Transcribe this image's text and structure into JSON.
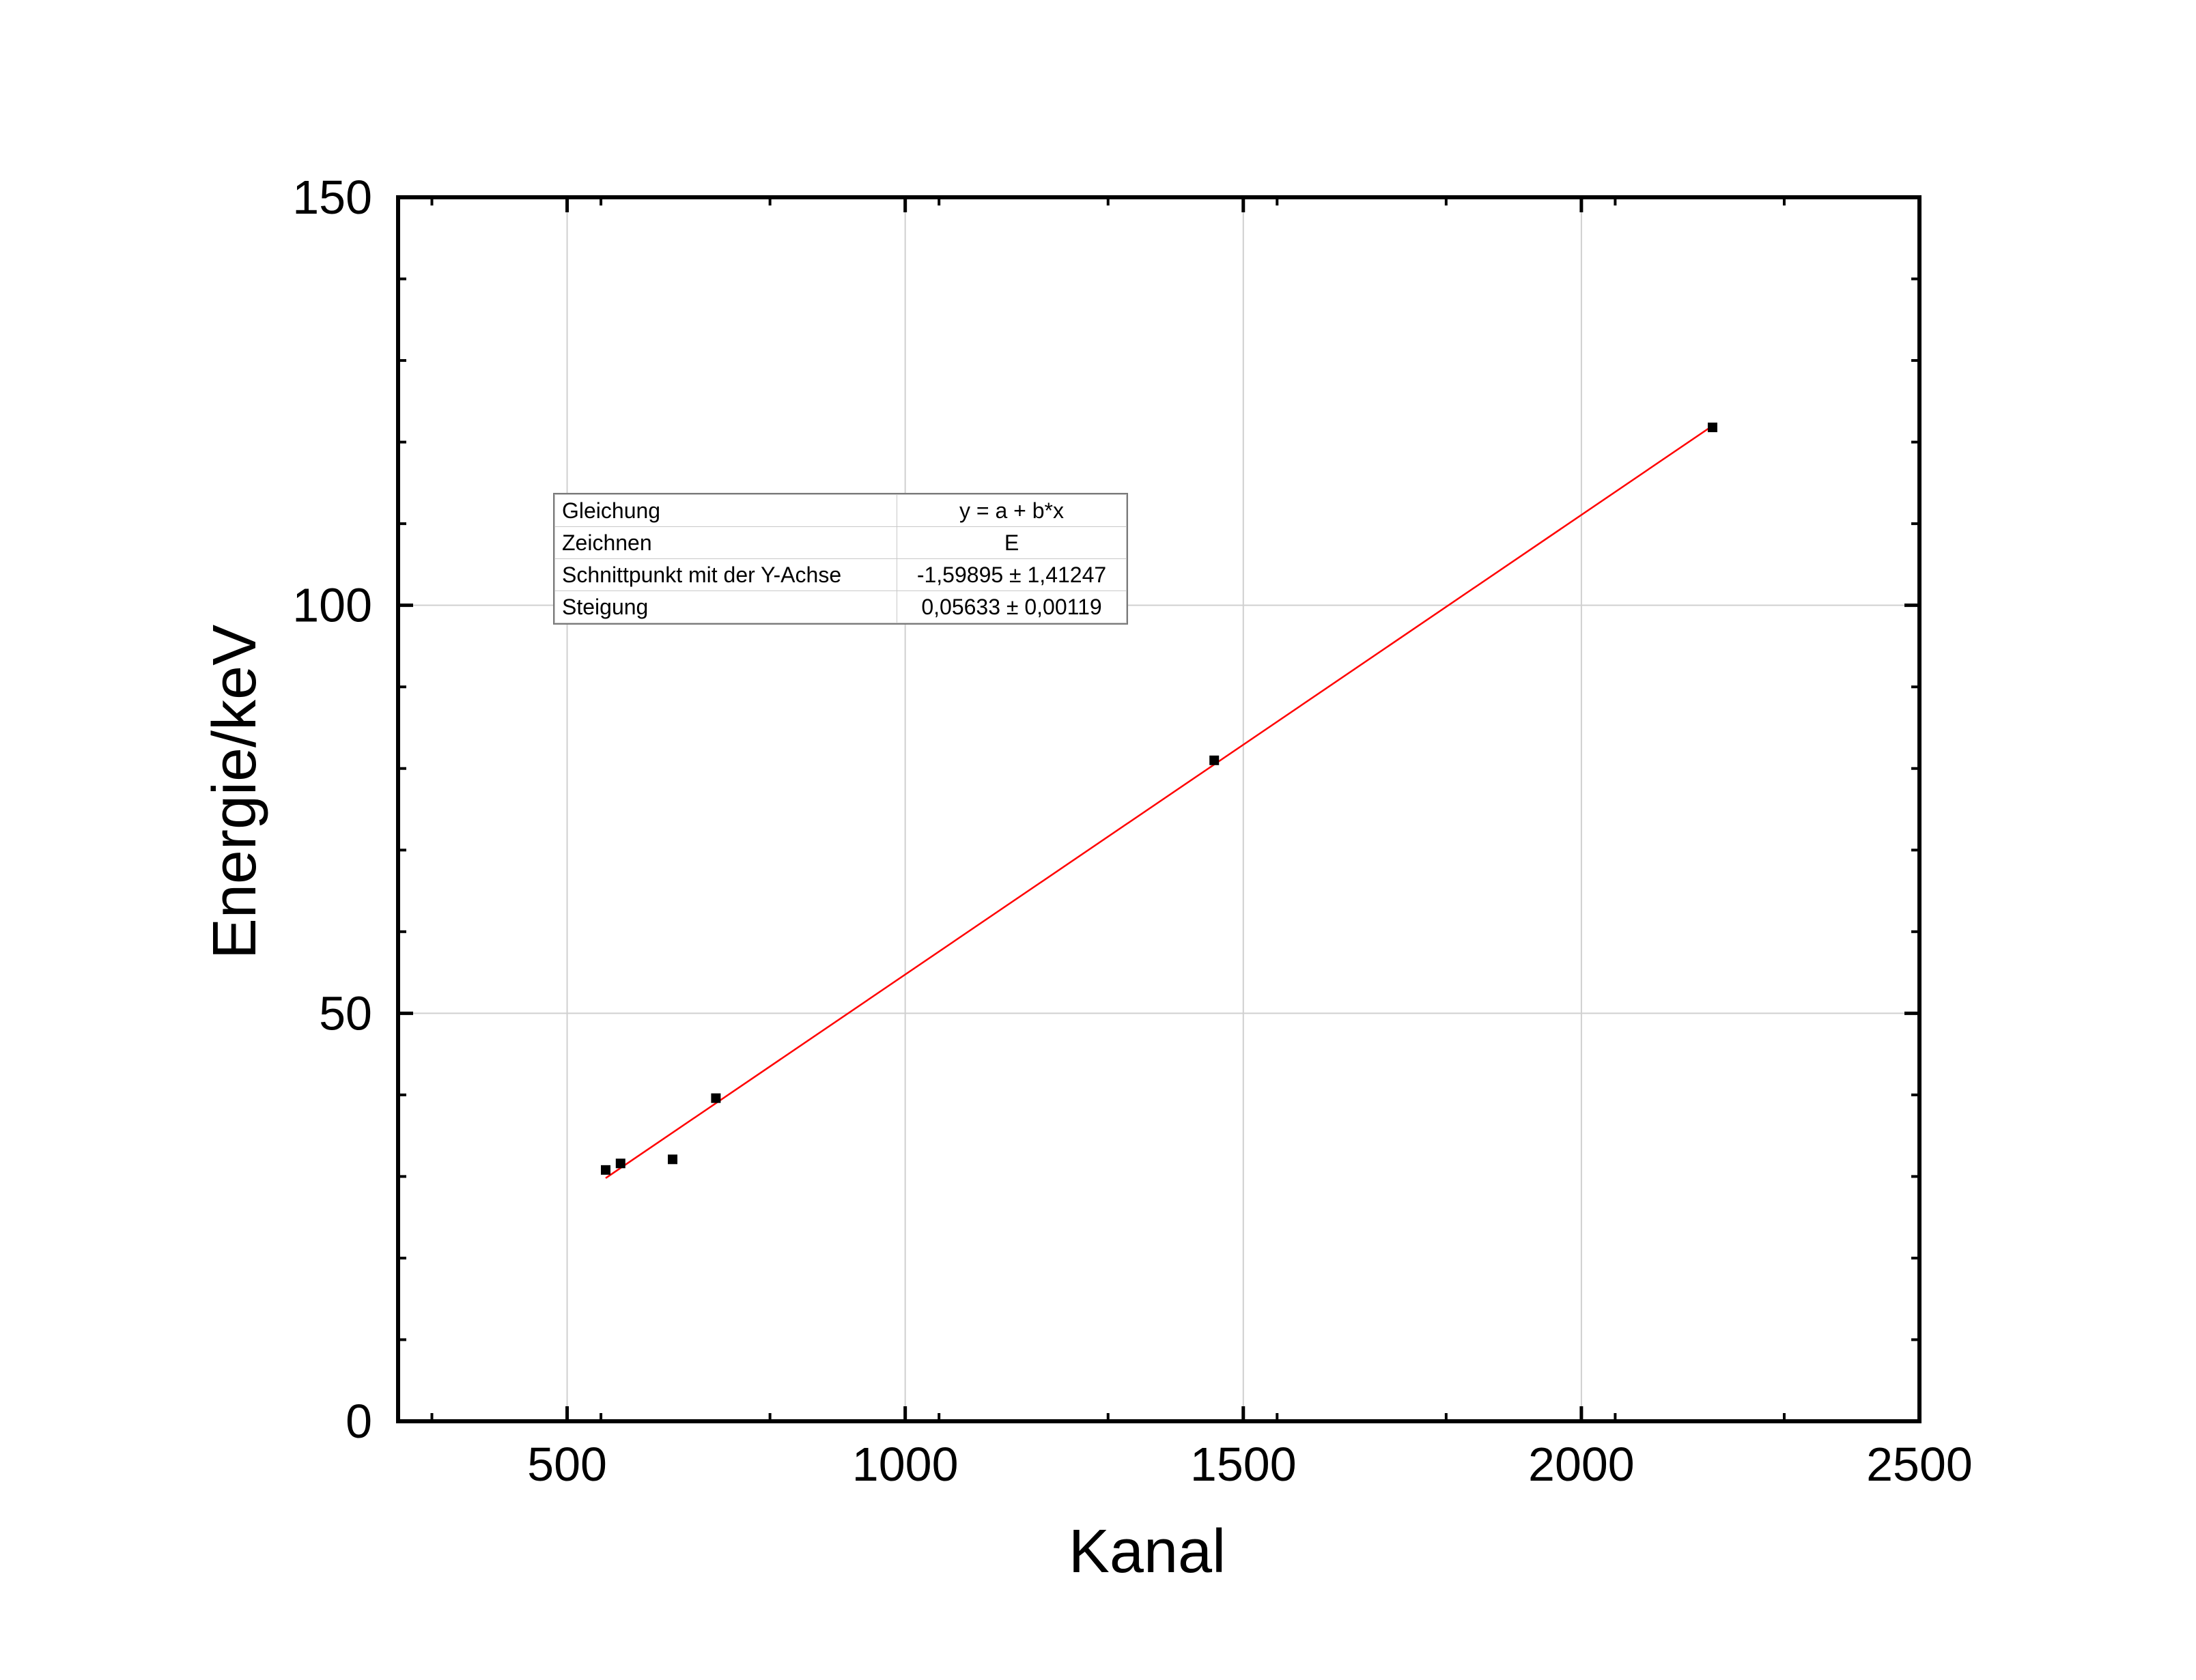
{
  "chart_data": {
    "type": "scatter",
    "xlabel": "Kanal",
    "ylabel": "Energie/keV",
    "xlim": [
      250,
      2500
    ],
    "ylim": [
      0,
      150
    ],
    "x_ticks": [
      500,
      1000,
      1500,
      2000,
      2500
    ],
    "y_ticks": [
      0,
      50,
      100,
      150
    ],
    "grid": true,
    "series": [
      {
        "kind": "points",
        "color": "#000000",
        "marker": "square",
        "x": [
          557,
          579,
          656,
          720,
          1457,
          2194
        ],
        "y": [
          30.8,
          31.6,
          32.1,
          39.6,
          81.0,
          121.8
        ]
      },
      {
        "kind": "fit-line",
        "color": "#ff0000",
        "x": [
          557,
          2194
        ],
        "y": [
          29.8,
          122.0
        ]
      }
    ],
    "fit_table": {
      "rows": [
        {
          "label": "Gleichung",
          "value": "y = a + b*x"
        },
        {
          "label": "Zeichnen",
          "value": "E"
        },
        {
          "label": "Schnittpunkt mit der Y-Achse",
          "value": "-1,59895 ± 1,41247"
        },
        {
          "label": "Steigung",
          "value": "0,05633 ± 0,00119"
        }
      ]
    }
  }
}
